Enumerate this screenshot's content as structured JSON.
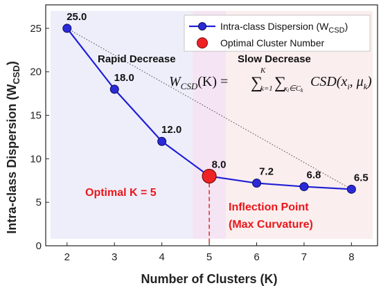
{
  "chart_data": {
    "type": "line",
    "x": [
      2,
      3,
      4,
      5,
      6,
      7,
      8
    ],
    "xlabel": "Number of Clusters (K)",
    "ylabel_main": "Intra-class Dispersion (W",
    "ylabel_sub": "CSD",
    "ylabel_close": ")",
    "xlim": [
      1.55,
      8.55
    ],
    "ylim": [
      0,
      27.7
    ],
    "xticks": [
      2,
      3,
      4,
      5,
      6,
      7,
      8
    ],
    "yticks": [
      0,
      5,
      10,
      15,
      20,
      25
    ],
    "grid": false,
    "legend_position": "top-right",
    "series": [
      {
        "name_main": "Intra-class Dispersion (W",
        "name_sub": "CSD",
        "name_close": ")",
        "color": "#1f1fd6",
        "marker_color": "#2a2ad8",
        "values": [
          25.0,
          18.0,
          12.0,
          8.0,
          7.2,
          6.8,
          6.5
        ],
        "data_labels": [
          "25.0",
          "18.0",
          "12.0",
          "8.0",
          "7.2",
          "6.8",
          "6.5"
        ]
      }
    ],
    "optimal_point": {
      "name": "Optimal Cluster Number",
      "x": 5,
      "y": 8.0,
      "color": "#ee2225"
    },
    "reference_line": {
      "from": [
        2,
        25.0
      ],
      "to": [
        8,
        6.5
      ],
      "style": "dotted"
    },
    "regions": [
      {
        "label": "Rapid Decrease",
        "x_from": 1.65,
        "x_to": 4.65,
        "color": "#eeeefa"
      },
      {
        "label": "",
        "x_from": 4.65,
        "x_to": 5.35,
        "color": "#f5e4f3"
      },
      {
        "label": "Slow Decrease",
        "x_from": 5.35,
        "x_to": 8.45,
        "color": "#fbeeee"
      }
    ],
    "annotations": {
      "optimal_k": "Optimal K = 5",
      "inflection_line1": "Inflection Point",
      "inflection_line2": "(Max Curvature)"
    },
    "formula": {
      "lhs_w": "W",
      "lhs_sub": "CSD",
      "lhs_arg": "(K) =",
      "sum1": "∑",
      "sum1_top": "K",
      "sum1_bottom": "k=1",
      "sum2": "∑",
      "sum2_bottom": "x",
      "sum2_bottom_i": "i",
      "sum2_bottom_in": "∈C",
      "sum2_bottom_k": "k",
      "csd": "CSD(x",
      "csd_i": "i",
      "csd_mid": ", μ",
      "csd_k": "k",
      "csd_close": ")"
    }
  }
}
